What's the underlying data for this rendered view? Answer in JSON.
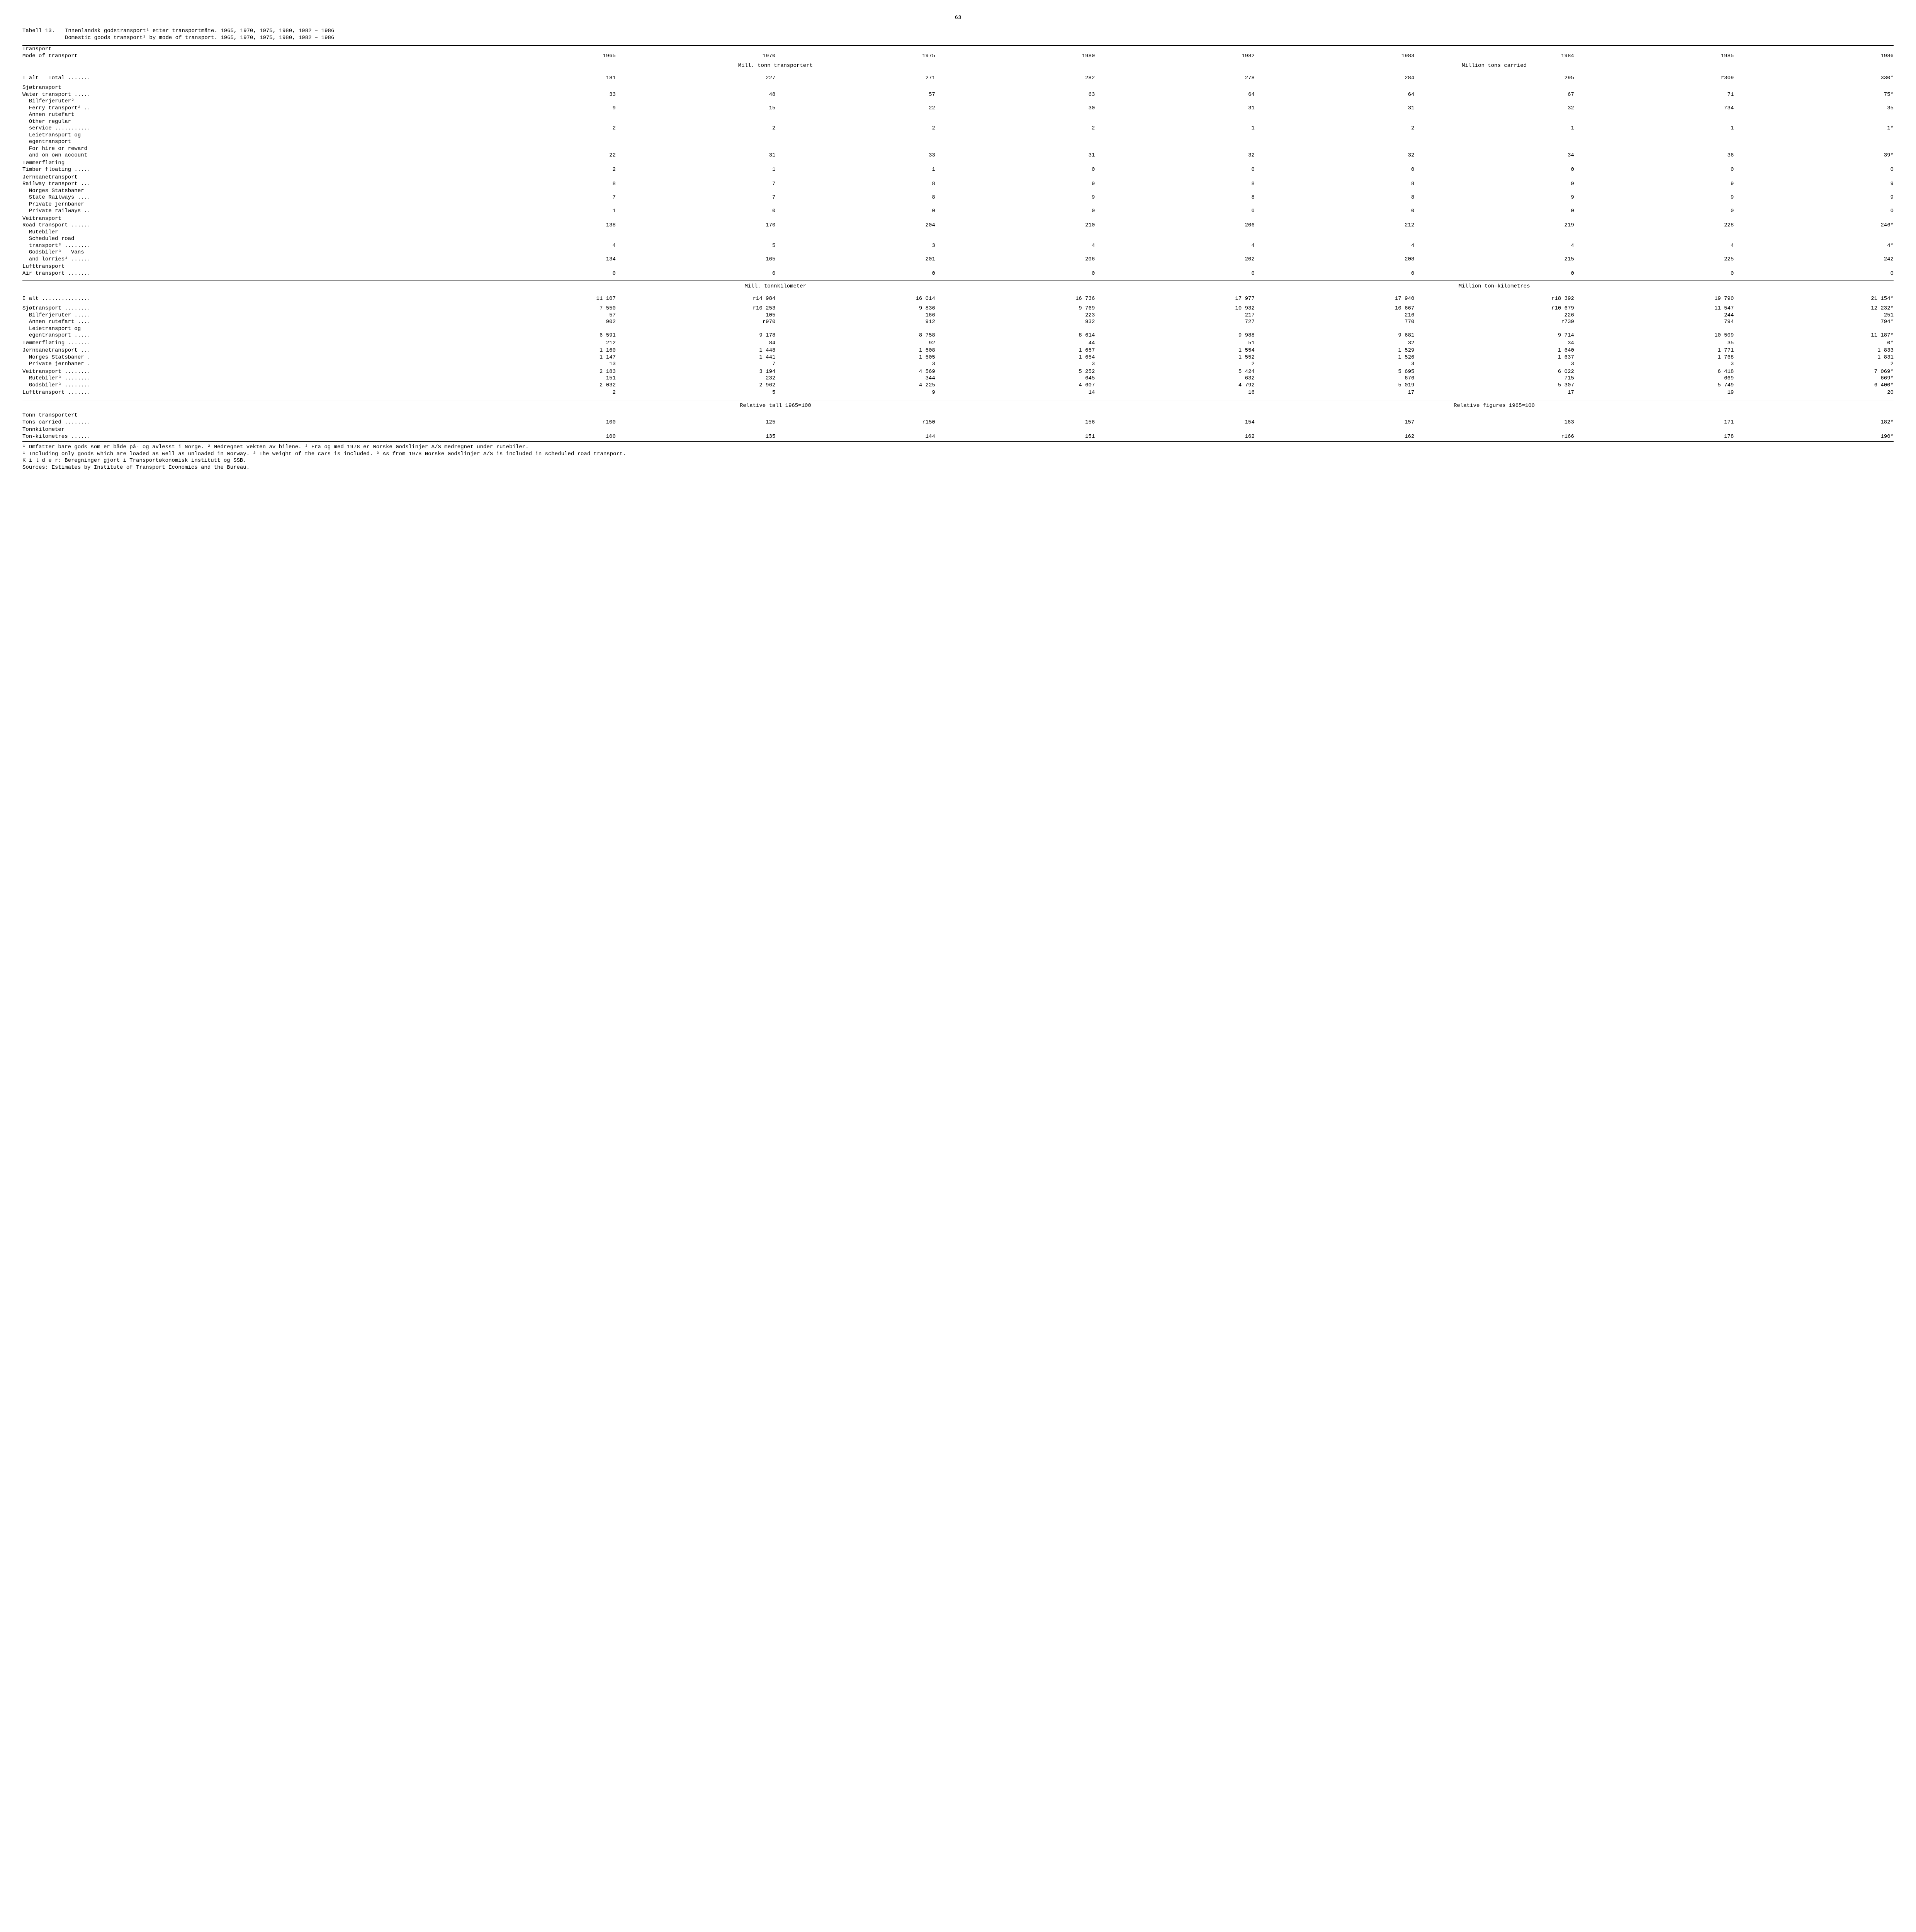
{
  "page_number": "63",
  "caption": {
    "label": "Tabell 13.",
    "line1": "Innenlandsk godstransport¹ etter transportmåte.  1965, 1970, 1975, 1980, 1982 – 1986",
    "line2": "Domestic goods  transport¹  by mode of transport.  1965, 1970, 1975, 1980, 1982 – 1986"
  },
  "headers": {
    "label_top": "Transport",
    "label_bot": "Mode of transport",
    "years": [
      "1965",
      "1970",
      "1975",
      "1980",
      "1982",
      "1983",
      "1984",
      "1985",
      "1986"
    ]
  },
  "section1": {
    "left": "Mill. tonn transportert",
    "right": "Million tons carried"
  },
  "rows1": [
    {
      "l": "I alt   Total .......",
      "v": [
        "181",
        "227",
        "271",
        "282",
        "278",
        "284",
        "295",
        "r309",
        "330*"
      ],
      "gap": "before"
    },
    {
      "l": "Sjøtransport",
      "v": [
        "",
        "",
        "",
        "",
        "",
        "",
        "",
        "",
        ""
      ],
      "gap": "before"
    },
    {
      "l": "Water transport .....",
      "v": [
        "33",
        "48",
        "57",
        "63",
        "64",
        "64",
        "67",
        "71",
        "75*"
      ]
    },
    {
      "l": "  Bilferjeruter²",
      "v": [
        "",
        "",
        "",
        "",
        "",
        "",
        "",
        "",
        ""
      ]
    },
    {
      "l": "  Ferry transport² ..",
      "v": [
        "9",
        "15",
        "22",
        "30",
        "31",
        "31",
        "32",
        "r34",
        "35"
      ]
    },
    {
      "l": "  Annen rutefart",
      "v": [
        "",
        "",
        "",
        "",
        "",
        "",
        "",
        "",
        ""
      ]
    },
    {
      "l": "  Other regular",
      "v": [
        "",
        "",
        "",
        "",
        "",
        "",
        "",
        "",
        ""
      ]
    },
    {
      "l": "  service ...........",
      "v": [
        "2",
        "2",
        "2",
        "2",
        "1",
        "2",
        "1",
        "1",
        "1*"
      ]
    },
    {
      "l": "  Leietransport og",
      "v": [
        "",
        "",
        "",
        "",
        "",
        "",
        "",
        "",
        ""
      ]
    },
    {
      "l": "  egentransport",
      "v": [
        "",
        "",
        "",
        "",
        "",
        "",
        "",
        "",
        ""
      ]
    },
    {
      "l": "  For hire or reward",
      "v": [
        "",
        "",
        "",
        "",
        "",
        "",
        "",
        "",
        ""
      ]
    },
    {
      "l": "  and on own account ",
      "v": [
        "22",
        "31",
        "33",
        "31",
        "32",
        "32",
        "34",
        "36",
        "39*"
      ]
    },
    {
      "l": "Tømmerfløting",
      "v": [
        "",
        "",
        "",
        "",
        "",
        "",
        "",
        "",
        ""
      ],
      "gap": "small"
    },
    {
      "l": "Timber floating .....",
      "v": [
        "2",
        "1",
        "1",
        "0",
        "0",
        "0",
        "0",
        "0",
        "0"
      ]
    },
    {
      "l": "Jernbanetransport",
      "v": [
        "",
        "",
        "",
        "",
        "",
        "",
        "",
        "",
        ""
      ],
      "gap": "small"
    },
    {
      "l": "Railway transport ...",
      "v": [
        "8",
        "7",
        "8",
        "9",
        "8",
        "8",
        "9",
        "9",
        "9"
      ]
    },
    {
      "l": "  Norges Statsbaner",
      "v": [
        "",
        "",
        "",
        "",
        "",
        "",
        "",
        "",
        ""
      ]
    },
    {
      "l": "  State Railways ....",
      "v": [
        "7",
        "7",
        "8",
        "9",
        "8",
        "8",
        "9",
        "9",
        "9"
      ]
    },
    {
      "l": "  Private jernbaner",
      "v": [
        "",
        "",
        "",
        "",
        "",
        "",
        "",
        "",
        ""
      ]
    },
    {
      "l": "  Private railways ..",
      "v": [
        "1",
        "0",
        "0",
        "0",
        "0",
        "0",
        "0",
        "0",
        "0"
      ]
    },
    {
      "l": "Veitransport",
      "v": [
        "",
        "",
        "",
        "",
        "",
        "",
        "",
        "",
        ""
      ],
      "gap": "small"
    },
    {
      "l": "Road transport ......",
      "v": [
        "138",
        "170",
        "204",
        "210",
        "206",
        "212",
        "219",
        "228",
        "246*"
      ]
    },
    {
      "l": "  Rutebiler",
      "v": [
        "",
        "",
        "",
        "",
        "",
        "",
        "",
        "",
        ""
      ]
    },
    {
      "l": "  Scheduled road",
      "v": [
        "",
        "",
        "",
        "",
        "",
        "",
        "",
        "",
        ""
      ]
    },
    {
      "l": "  transport³ ........",
      "v": [
        "4",
        "5",
        "3",
        "4",
        "4",
        "4",
        "4",
        "4",
        "4*"
      ]
    },
    {
      "l": "  Godsbiler³   Vans",
      "v": [
        "",
        "",
        "",
        "",
        "",
        "",
        "",
        "",
        ""
      ]
    },
    {
      "l": "  and lorries³ ......",
      "v": [
        "134",
        "165",
        "201",
        "206",
        "202",
        "208",
        "215",
        "225",
        "242"
      ]
    },
    {
      "l": "Lufttransport",
      "v": [
        "",
        "",
        "",
        "",
        "",
        "",
        "",
        "",
        ""
      ],
      "gap": "small"
    },
    {
      "l": "Air transport .......",
      "v": [
        "0",
        "0",
        "0",
        "0",
        "0",
        "0",
        "0",
        "0",
        "0"
      ]
    }
  ],
  "section2": {
    "left": "Mill. tonnkilometer",
    "right": "Million ton-kilometres"
  },
  "rows2": [
    {
      "l": "I alt ...............",
      "v": [
        "11 107",
        "r14 984",
        "16 014",
        "16 736",
        "17 977",
        "17 940",
        "r18 392",
        "19 790",
        "21 154*"
      ],
      "gap": "before"
    },
    {
      "l": "Sjøtransport ........",
      "v": [
        "7 550",
        "r10 253",
        "9 836",
        "9 769",
        "10 932",
        "10 667",
        "r10 679",
        "11 547",
        "12 232*"
      ],
      "gap": "before"
    },
    {
      "l": "  Bilferjeruter .....",
      "v": [
        "57",
        "105",
        "166",
        "223",
        "217",
        "216",
        "226",
        "244",
        "251"
      ]
    },
    {
      "l": "  Annen rutefart ....",
      "v": [
        "902",
        "r970",
        "912",
        "932",
        "727",
        "770",
        "r739",
        "794",
        "794*"
      ]
    },
    {
      "l": "  Leietransport og",
      "v": [
        "",
        "",
        "",
        "",
        "",
        "",
        "",
        "",
        ""
      ]
    },
    {
      "l": "  egentransport .....",
      "v": [
        "6 591",
        "9 178",
        "8 758",
        "8 614",
        "9 988",
        "9 681",
        "9 714",
        "10 509",
        "11 187*"
      ]
    },
    {
      "l": "Tømmerfløting .......",
      "v": [
        "212",
        "84",
        "92",
        "44",
        "51",
        "32",
        "34",
        "35",
        "0*"
      ],
      "gap": "small"
    },
    {
      "l": "Jernbanetransport ...",
      "v": [
        "1 160",
        "1 448",
        "1 508",
        "1 657",
        "1 554",
        "1 529",
        "1 640",
        "1 771",
        "1 833"
      ],
      "gap": "small"
    },
    {
      "l": "  Norges Statsbaner .",
      "v": [
        "1 147",
        "1 441",
        "1 505",
        "1 654",
        "1 552",
        "1 526",
        "1 637",
        "1 768",
        "1 831"
      ]
    },
    {
      "l": "  Private jernbaner .",
      "v": [
        "13",
        "7",
        "3",
        "3",
        "2",
        "3",
        "3",
        "3",
        "2"
      ]
    },
    {
      "l": "Veitransport ........",
      "v": [
        "2 183",
        "3 194",
        "4 569",
        "5 252",
        "5 424",
        "5 695",
        "6 022",
        "6 418",
        "7 069*"
      ],
      "gap": "small"
    },
    {
      "l": "  Rutebiler³ ........",
      "v": [
        "151",
        "232",
        "344",
        "645",
        "632",
        "676",
        "715",
        "669",
        "669*"
      ]
    },
    {
      "l": "  Godsbiler³ ........",
      "v": [
        "2 032",
        "2 962",
        "4 225",
        "4 607",
        "4 792",
        "5 019",
        "5 307",
        "5 749",
        "6 400*"
      ]
    },
    {
      "l": "Lufttransport .......",
      "v": [
        "2",
        "5",
        "9",
        "14",
        "16",
        "17",
        "17",
        "19",
        "20"
      ],
      "gap": "small"
    }
  ],
  "section3": {
    "left": "Relative tall 1965=100",
    "right": "Relative figures 1965=100"
  },
  "rows3": [
    {
      "l": "Tonn transportert",
      "v": [
        "",
        "",
        "",
        "",
        "",
        "",
        "",
        "",
        ""
      ],
      "gap": "small"
    },
    {
      "l": "Tons carried ........",
      "v": [
        "100",
        "125",
        "r150",
        "156",
        "154",
        "157",
        "163",
        "171",
        "182*"
      ]
    },
    {
      "l": "Tonnkilometer",
      "v": [
        "",
        "",
        "",
        "",
        "",
        "",
        "",
        "",
        ""
      ],
      "gap": "small"
    },
    {
      "l": "Ton-kilometres ......",
      "v": [
        "100",
        "135",
        "144",
        "151",
        "162",
        "162",
        "r166",
        "178",
        "190*"
      ]
    }
  ],
  "footnotes": {
    "no": "¹ Omfatter bare gods som er både på- og avlesst i Norge.   ² Medregnet vekten av bilene.   ³ Fra og med 1978 er Norske Godslinjer A/S medregnet under rutebiler.",
    "en": "¹ Including only goods which are loaded as well as unloaded in Norway.   ² The weight of the cars is included.   ³ As from 1978 Norske Godslinjer A/S is included in scheduled road transport.",
    "src_no": "K i l d e r:  Beregninger gjort i Transportøkonomisk institutt og SSB.",
    "src_en": "Sources: Estimates by Institute of Transport Economics and the Bureau."
  }
}
